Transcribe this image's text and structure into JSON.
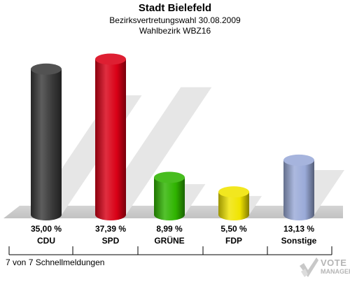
{
  "header": {
    "title": "Stadt Bielefeld",
    "subtitle1": "Bezirksvertretungswahl 30.08.2009",
    "subtitle2": "Wahlbezirk WBZ16"
  },
  "footer": {
    "note": "7 von 7 Schnellmeldungen",
    "watermark_line1": "VOTE",
    "watermark_line2": "MANAGER"
  },
  "chart_data": {
    "type": "bar",
    "title": "Stadt Bielefeld",
    "categories": [
      "CDU",
      "SPD",
      "GRÜNE",
      "FDP",
      "Sonstige"
    ],
    "values": [
      35.0,
      37.39,
      8.99,
      5.5,
      13.13
    ],
    "value_labels": [
      "35,00 %",
      "37,39 %",
      "8,99 %",
      "5,50 %",
      "13,13 %"
    ],
    "colors": [
      "#3a3a3a",
      "#d90016",
      "#2fb400",
      "#f0e400",
      "#9aaad8"
    ],
    "ylim": [
      0,
      40
    ],
    "grid": false,
    "legend": "none"
  }
}
